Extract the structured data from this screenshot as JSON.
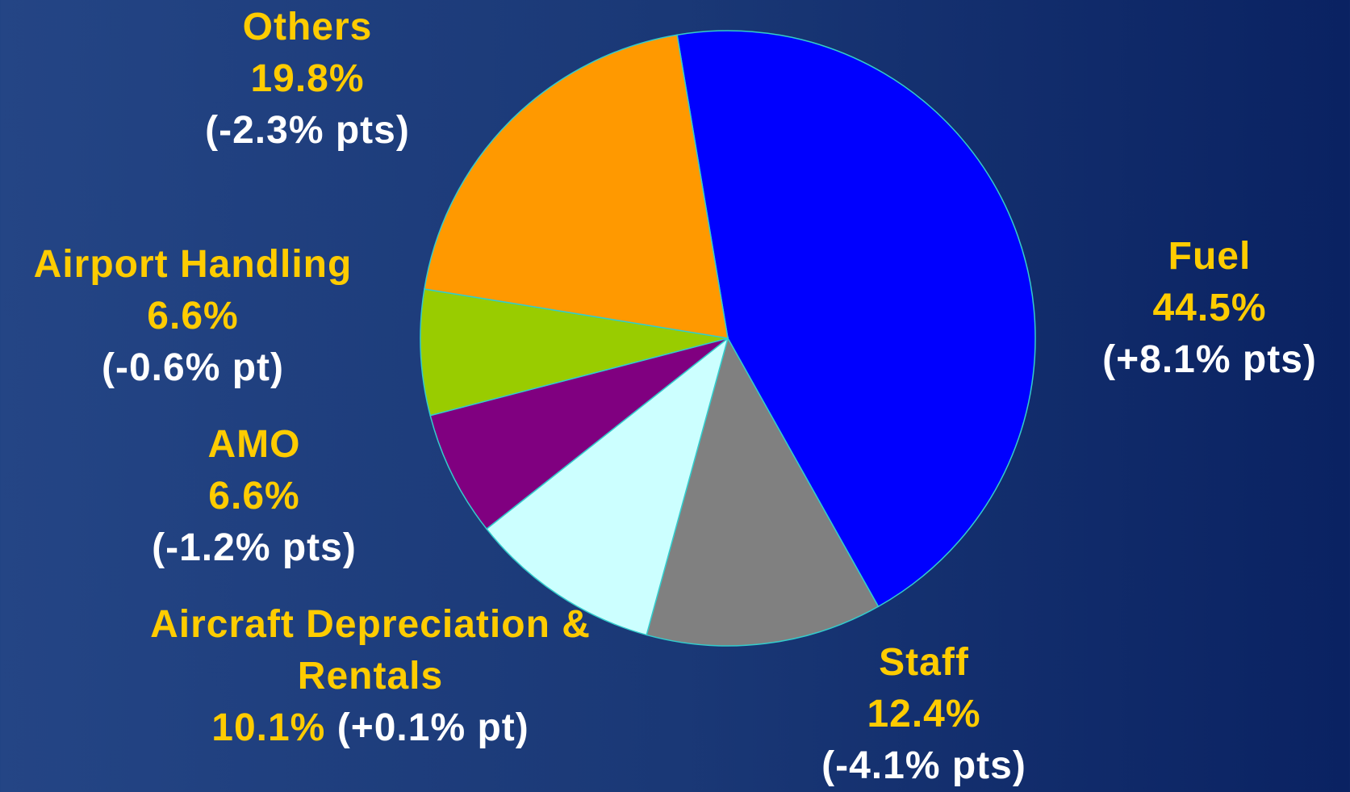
{
  "chart_data": {
    "type": "pie",
    "categories": [
      "Fuel",
      "Staff",
      "Aircraft Depreciation & Rentals",
      "AMO",
      "Airport Handling",
      "Others"
    ],
    "values": [
      44.5,
      12.4,
      10.1,
      6.6,
      6.6,
      19.8
    ],
    "value_labels": [
      "44.5%",
      "12.4%",
      "10.1%",
      "6.6%",
      "6.6%",
      "19.8%"
    ],
    "annotations": [
      "(+8.1% pts)",
      "(-4.1% pts)",
      "(+0.1% pt)",
      "(-1.2% pts)",
      "(-0.6% pt)",
      "(-2.3% pts)"
    ],
    "colors": [
      "#0000ff",
      "#808080",
      "#ccffff",
      "#800080",
      "#99cc00",
      "#ff9900"
    ]
  }
}
